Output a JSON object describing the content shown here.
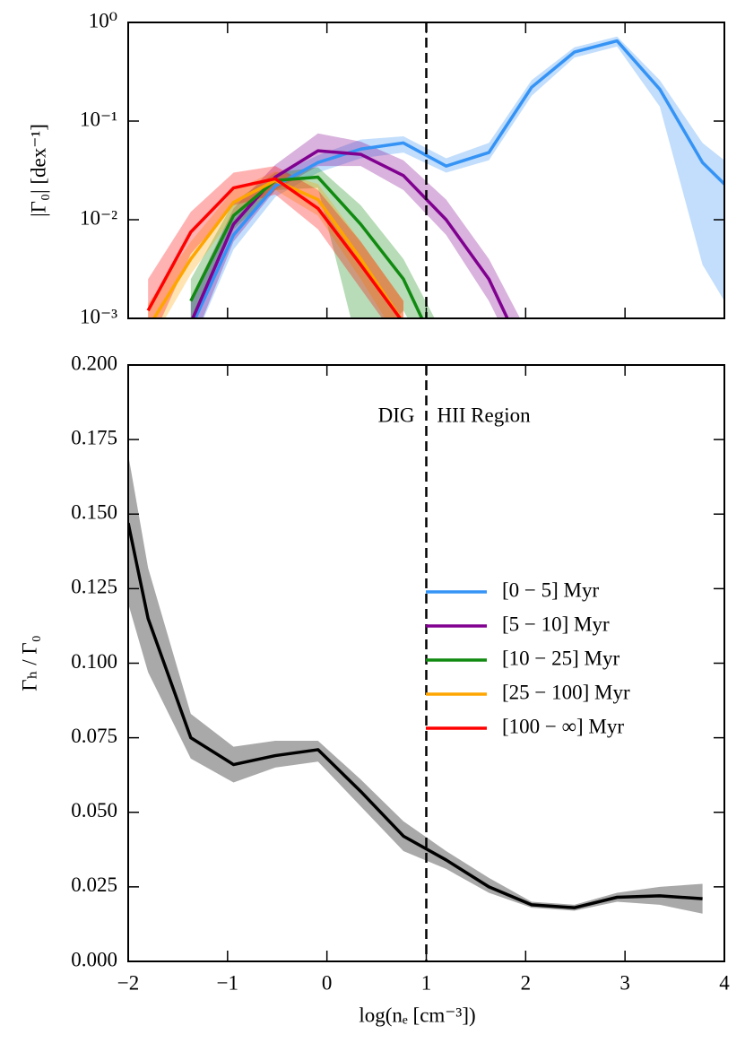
{
  "chart_data": [
    {
      "type": "line",
      "ylabel": "|Γ₀| [dex⁻¹]",
      "log_y": true,
      "x": [
        -1.8,
        -1.37,
        -0.94,
        -0.52,
        -0.09,
        0.34,
        0.77,
        1.2,
        1.63,
        2.06,
        2.49,
        2.92,
        3.35,
        3.78,
        4.0
      ],
      "xlim": [
        -2,
        4
      ],
      "xticks": [
        -2,
        -1,
        0,
        1,
        2,
        3,
        4
      ],
      "xtick_labels": false,
      "ylim": [
        0.001,
        1
      ],
      "yticks": [
        {
          "value": 0.001,
          "label": "10⁻³"
        },
        {
          "value": 0.01,
          "label": "10⁻²"
        },
        {
          "value": 0.1,
          "label": "10⁻¹"
        },
        {
          "value": 1,
          "label": "10⁰"
        }
      ],
      "vline": 1,
      "series": [
        {
          "name": "[0 − 5] Myr",
          "color": "#3593f5",
          "values": [
            null,
            0.0008,
            0.007,
            0.022,
            0.038,
            0.052,
            0.06,
            0.035,
            0.048,
            0.22,
            0.5,
            0.65,
            0.21,
            0.038,
            0.023
          ],
          "lower": [
            null,
            0.0005,
            0.005,
            0.017,
            0.03,
            0.042,
            0.048,
            0.03,
            0.04,
            0.18,
            0.44,
            0.57,
            0.14,
            0.0035,
            0.0015
          ],
          "upper": [
            null,
            0.0015,
            0.01,
            0.028,
            0.045,
            0.065,
            0.07,
            0.042,
            0.06,
            0.26,
            0.56,
            0.72,
            0.26,
            0.06,
            0.04
          ]
        },
        {
          "name": "[5 − 10] Myr",
          "color": "#800090",
          "values": [
            null,
            0.0009,
            0.009,
            0.027,
            0.05,
            0.046,
            0.028,
            0.01,
            0.0025,
            0.0003,
            null,
            null,
            null,
            null,
            null
          ],
          "lower": [
            null,
            0.0005,
            0.006,
            0.02,
            0.035,
            0.035,
            0.02,
            0.007,
            0.0015,
            0.0002,
            null,
            null,
            null,
            null,
            null
          ],
          "upper": [
            null,
            0.0016,
            0.013,
            0.036,
            0.075,
            0.062,
            0.04,
            0.016,
            0.004,
            0.0006,
            null,
            null,
            null,
            null,
            null
          ]
        },
        {
          "name": "[10 − 25] Myr",
          "color": "#118a11",
          "values": [
            null,
            0.0015,
            0.011,
            0.025,
            0.027,
            0.009,
            0.0025,
            0.0003,
            null,
            null,
            null,
            null,
            null,
            null,
            null
          ],
          "lower": [
            null,
            0.0009,
            0.008,
            0.02,
            0.021,
            0.0004,
            0.0012,
            0.0002,
            null,
            null,
            null,
            null,
            null,
            null,
            null
          ],
          "upper": [
            null,
            0.0025,
            0.015,
            0.03,
            0.034,
            0.014,
            0.004,
            0.0006,
            null,
            null,
            null,
            null,
            null,
            null,
            null
          ]
        },
        {
          "name": "[25 − 100] Myr",
          "color": "#ffa500",
          "values": [
            0.0008,
            0.004,
            0.015,
            0.025,
            0.016,
            0.004,
            0.0009,
            null,
            null,
            null,
            null,
            null,
            null,
            null,
            null
          ],
          "lower": [
            0.0005,
            0.0028,
            0.011,
            0.02,
            0.011,
            0.0025,
            0.0005,
            null,
            null,
            null,
            null,
            null,
            null,
            null,
            null
          ],
          "upper": [
            0.0014,
            0.006,
            0.02,
            0.031,
            0.023,
            0.006,
            0.0015,
            null,
            null,
            null,
            null,
            null,
            null,
            null,
            null
          ]
        },
        {
          "name": "[100 − ∞] Myr",
          "color": "#ff0000",
          "values": [
            0.0012,
            0.0075,
            0.021,
            0.026,
            0.013,
            0.0035,
            0.0009,
            null,
            null,
            null,
            null,
            null,
            null,
            null,
            null
          ],
          "lower": [
            0.0005,
            0.0045,
            0.014,
            0.018,
            0.008,
            0.002,
            0.0005,
            null,
            null,
            null,
            null,
            null,
            null,
            null,
            null
          ],
          "upper": [
            0.0025,
            0.012,
            0.03,
            0.035,
            0.02,
            0.006,
            0.0015,
            null,
            null,
            null,
            null,
            null,
            null,
            null,
            null
          ]
        }
      ]
    },
    {
      "type": "line",
      "ylabel": "Γₕ / Γ₀",
      "xlabel": "log(nₑ [cm⁻³])",
      "x": [
        -2.0,
        -1.8,
        -1.37,
        -0.94,
        -0.52,
        -0.09,
        0.34,
        0.77,
        1.2,
        1.63,
        2.06,
        2.49,
        2.92,
        3.35,
        3.78
      ],
      "xlim": [
        -2,
        4
      ],
      "xticks": [
        {
          "value": -2,
          "label": "−2"
        },
        {
          "value": -1,
          "label": "−1"
        },
        0,
        1,
        2,
        3,
        4
      ],
      "ylim": [
        0,
        0.2
      ],
      "yticks": [
        {
          "value": 0,
          "label": "0.000"
        },
        {
          "value": 0.025,
          "label": "0.025"
        },
        {
          "value": 0.05,
          "label": "0.050"
        },
        {
          "value": 0.075,
          "label": "0.075"
        },
        {
          "value": 0.1,
          "label": "0.100"
        },
        {
          "value": 0.125,
          "label": "0.125"
        },
        {
          "value": 0.15,
          "label": "0.150"
        },
        {
          "value": 0.175,
          "label": "0.175"
        },
        {
          "value": 0.2,
          "label": "0.200"
        }
      ],
      "vline": 1,
      "annotations": [
        "DIG",
        "HII Region"
      ],
      "series": [
        {
          "color": "#000000",
          "values": [
            0.147,
            0.115,
            0.075,
            0.066,
            0.069,
            0.071,
            0.057,
            0.042,
            0.034,
            0.025,
            0.019,
            0.018,
            0.0215,
            0.022,
            0.021
          ],
          "lower": [
            0.12,
            0.097,
            0.068,
            0.06,
            0.065,
            0.067,
            0.052,
            0.037,
            0.031,
            0.023,
            0.018,
            0.017,
            0.02,
            0.019,
            0.016
          ],
          "upper": [
            0.17,
            0.132,
            0.083,
            0.072,
            0.074,
            0.074,
            0.061,
            0.047,
            0.037,
            0.028,
            0.02,
            0.019,
            0.023,
            0.025,
            0.026
          ]
        }
      ]
    }
  ]
}
